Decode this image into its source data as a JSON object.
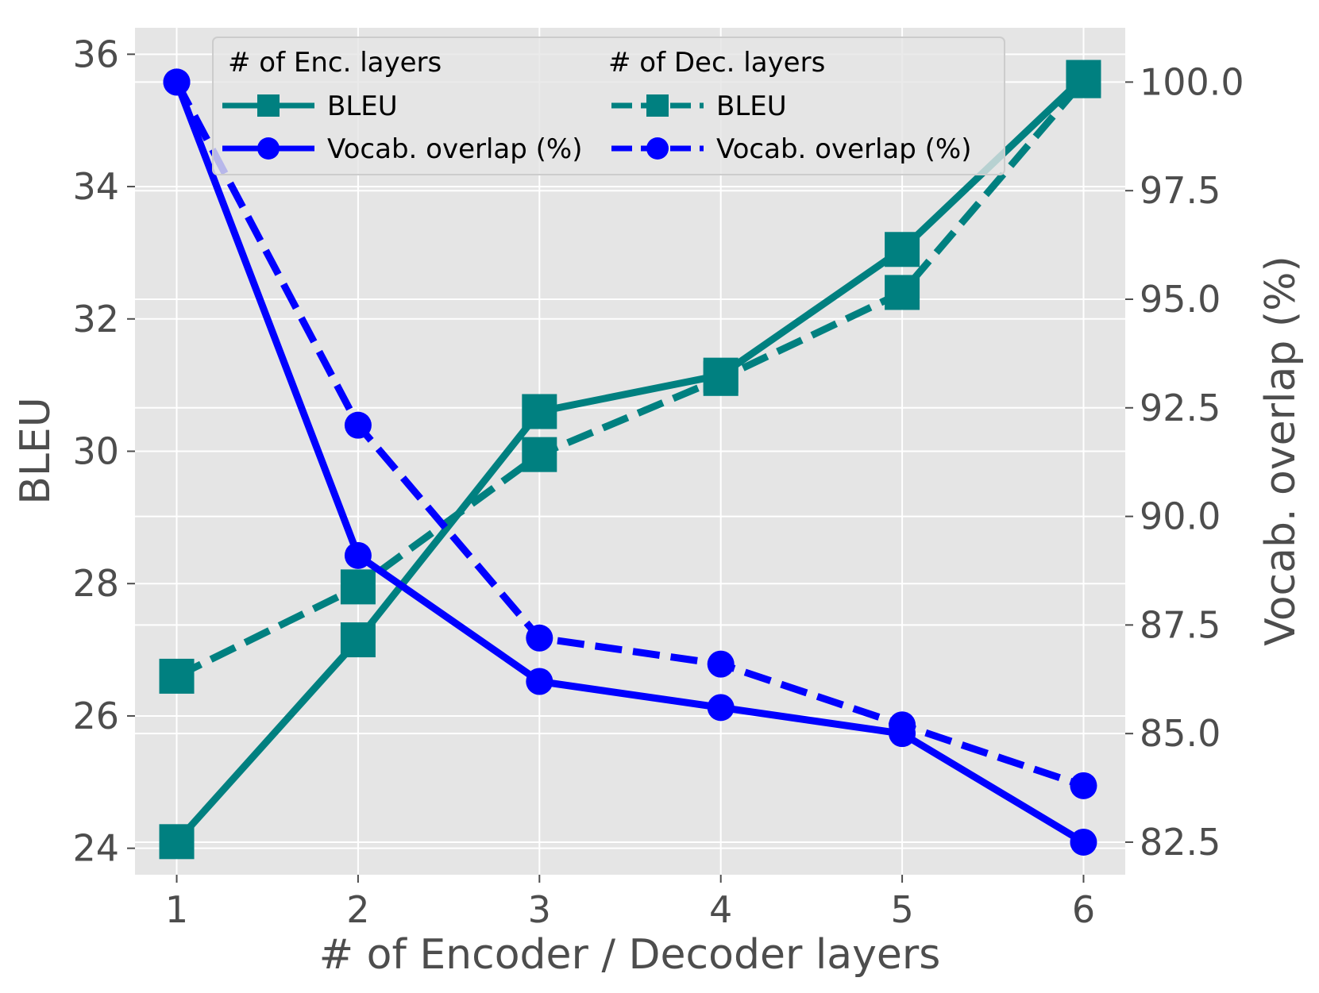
{
  "chart_data": {
    "type": "line",
    "xlabel": "# of Encoder / Decoder layers",
    "ylabel_left": "BLEU",
    "ylabel_right": "Vocab. overlap (%)",
    "x": [
      1,
      2,
      3,
      4,
      5,
      6
    ],
    "xlim": [
      0.77,
      6.23
    ],
    "ylim_left": [
      23.6,
      36.4
    ],
    "ylim_right": [
      81.75,
      101.25
    ],
    "yticks_left": [
      "24",
      "26",
      "28",
      "30",
      "32",
      "34",
      "36"
    ],
    "yticks_right": [
      "82.5",
      "85.0",
      "87.5",
      "90.0",
      "92.5",
      "95.0",
      "97.5",
      "100.0"
    ],
    "grid": true,
    "legend_placement": "top",
    "legend": {
      "headers": [
        "# of Enc. layers",
        "# of Dec. layers"
      ],
      "entries": [
        "BLEU",
        "Vocab. overlap (%)",
        "BLEU",
        "Vocab. overlap (%)"
      ]
    },
    "series": [
      {
        "group": "# of Enc. layers",
        "name": "BLEU",
        "axis": "left",
        "color": "#008080",
        "style": "solid",
        "marker": "square",
        "values": [
          24.1,
          27.15,
          30.6,
          31.15,
          33.05,
          35.65
        ]
      },
      {
        "group": "# of Dec. layers",
        "name": "BLEU",
        "axis": "left",
        "color": "#008080",
        "style": "dashed",
        "marker": "square",
        "values": [
          26.6,
          27.95,
          29.95,
          31.1,
          32.4,
          35.6
        ]
      },
      {
        "group": "# of Enc. layers",
        "name": "Vocab. overlap (%)",
        "axis": "right",
        "color": "#0000ff",
        "style": "solid",
        "marker": "circle",
        "values": [
          100.0,
          89.1,
          86.2,
          85.6,
          85.0,
          82.5
        ]
      },
      {
        "group": "# of Dec. layers",
        "name": "Vocab. overlap (%)",
        "axis": "right",
        "color": "#0000ff",
        "style": "dashed",
        "marker": "circle",
        "values": [
          100.0,
          92.1,
          87.2,
          86.6,
          85.2,
          83.8
        ]
      }
    ]
  }
}
